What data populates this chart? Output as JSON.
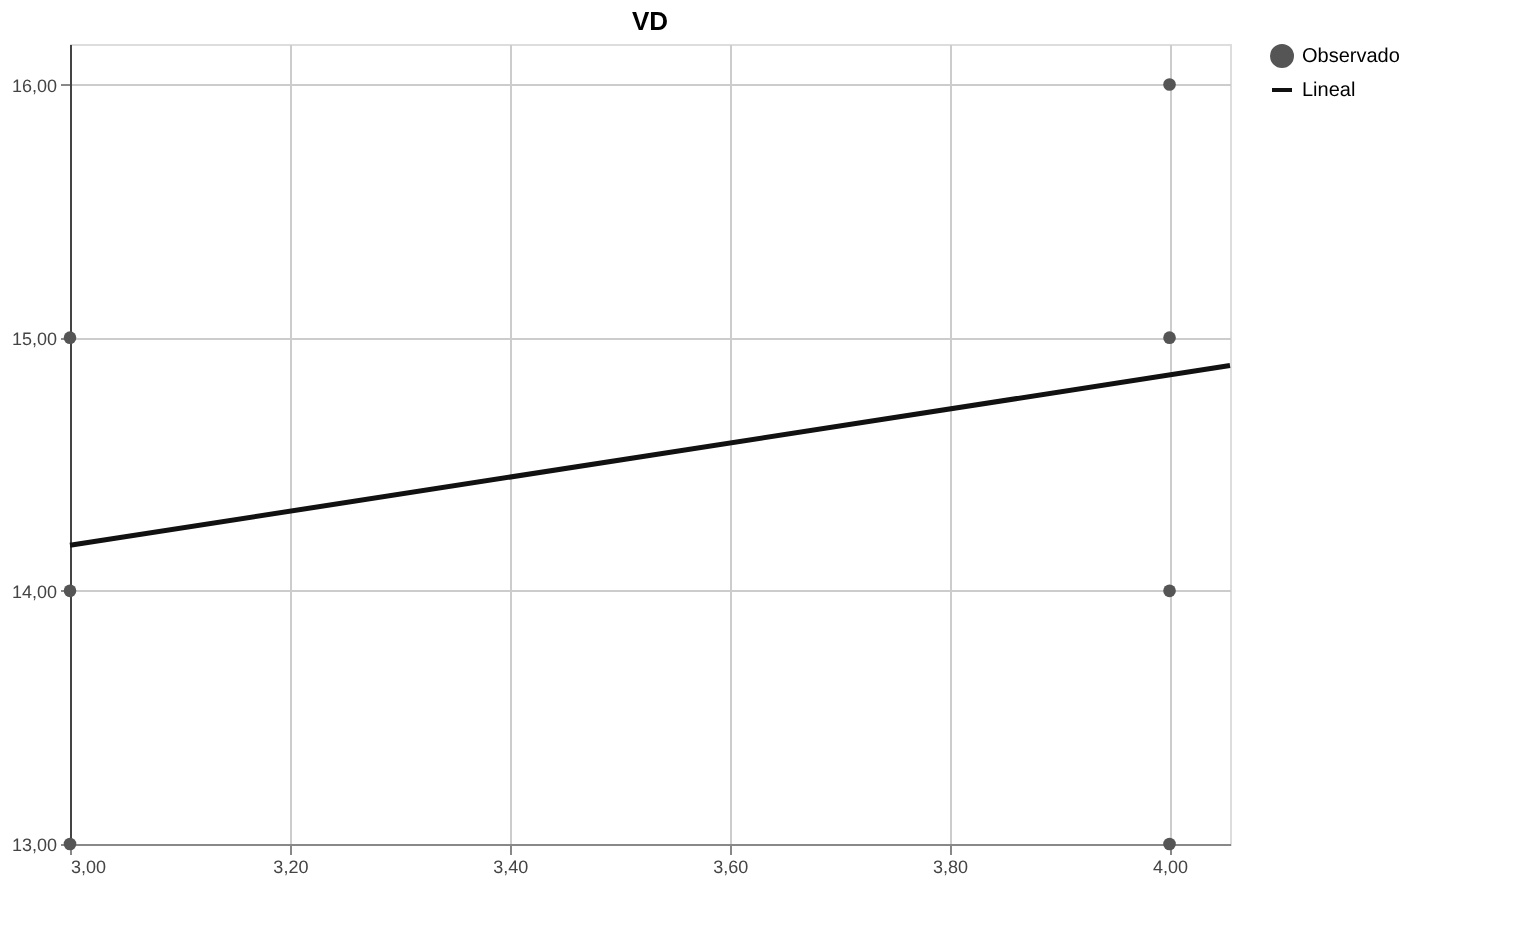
{
  "chart_data": {
    "type": "scatter",
    "title": "VD",
    "series": [
      {
        "name": "Observado",
        "color": "#555555",
        "marker": "circle",
        "x": [
          3,
          3,
          3,
          4,
          4,
          4,
          4
        ],
        "values": [
          13,
          14,
          15,
          13,
          14,
          15,
          16
        ]
      },
      {
        "name": "Lineal",
        "type": "line",
        "color": "#111111",
        "x": [
          3,
          4.055
        ],
        "values": [
          14.18,
          14.89
        ]
      }
    ],
    "xlim": [
      3,
      4.055
    ],
    "ylim": [
      13,
      16.16
    ],
    "xticks": [
      {
        "value": 3,
        "label": "3,00"
      },
      {
        "value": 3.2,
        "label": "3,20"
      },
      {
        "value": 3.4,
        "label": "3,40"
      },
      {
        "value": 3.6,
        "label": "3,60"
      },
      {
        "value": 3.8,
        "label": "3,80"
      },
      {
        "value": 4,
        "label": "4,00"
      }
    ],
    "yticks": [
      {
        "value": 13,
        "label": "13,00"
      },
      {
        "value": 14,
        "label": "14,00"
      },
      {
        "value": 15,
        "label": "15,00"
      },
      {
        "value": 16,
        "label": "16,00"
      }
    ],
    "grid": true,
    "legend": "top right"
  }
}
